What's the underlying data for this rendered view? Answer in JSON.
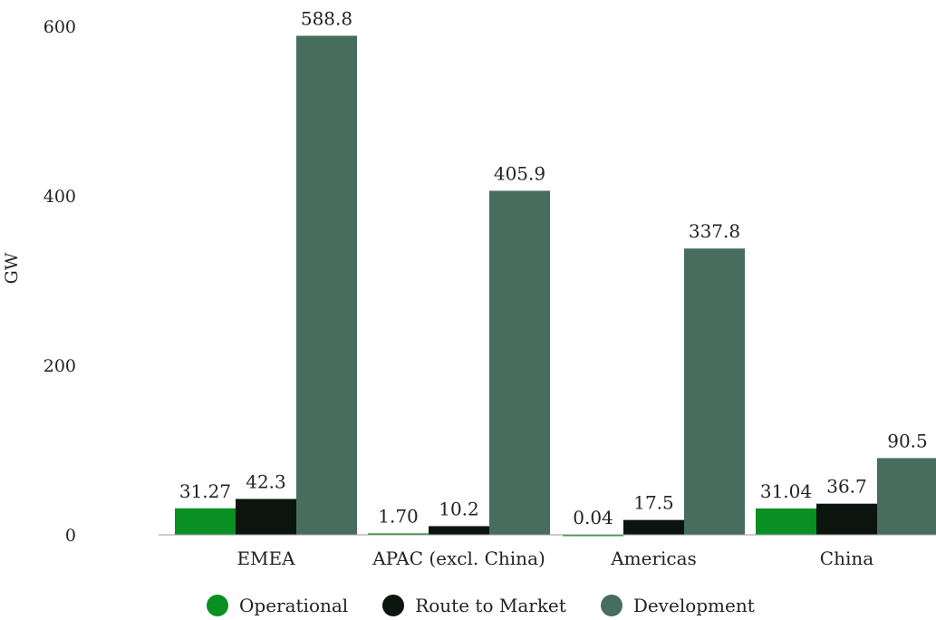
{
  "chart_data": {
    "type": "bar",
    "ylabel": "GW",
    "xlabel": "",
    "ylim": [
      0,
      600
    ],
    "yticks": [
      0,
      200,
      400,
      600
    ],
    "categories": [
      "EMEA",
      "APAC (excl. China)",
      "Americas",
      "China"
    ],
    "series": [
      {
        "name": "Operational",
        "color": "#0a8f22",
        "values": [
          31.27,
          1.7,
          0.04,
          31.04
        ],
        "labels": [
          "31.27",
          "1.70",
          "0.04",
          "31.04"
        ]
      },
      {
        "name": "Route to Market",
        "color": "#0b140f",
        "values": [
          42.3,
          10.2,
          17.5,
          36.7
        ],
        "labels": [
          "42.3",
          "10.2",
          "17.5",
          "36.7"
        ]
      },
      {
        "name": "Development",
        "color": "#466d5e",
        "values": [
          588.8,
          405.9,
          337.8,
          90.5
        ],
        "labels": [
          "588.8",
          "405.9",
          "337.8",
          "90.5"
        ]
      }
    ],
    "legend_position": "bottom",
    "grid": false
  }
}
